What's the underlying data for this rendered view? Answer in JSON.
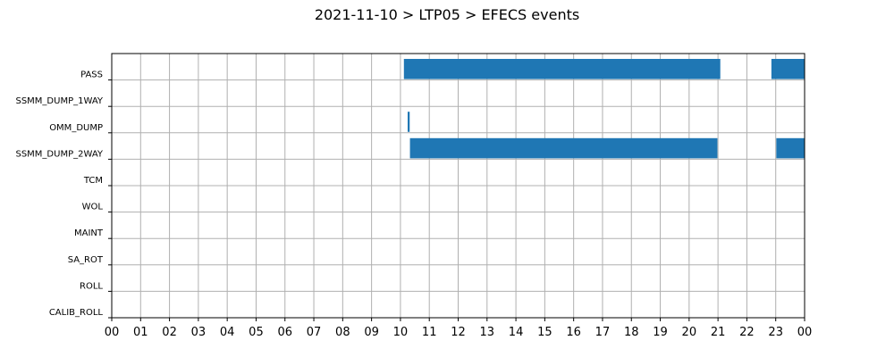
{
  "chart_data": {
    "type": "bar",
    "orientation": "horizontal-timeline",
    "title": "2021-11-10 > LTP05 > EFECS events",
    "xlabel": "",
    "ylabel": "",
    "x_unit": "hours",
    "xlim": [
      0,
      24
    ],
    "x_tick_labels": [
      "00",
      "01",
      "02",
      "03",
      "04",
      "05",
      "06",
      "07",
      "08",
      "09",
      "10",
      "11",
      "12",
      "13",
      "14",
      "15",
      "16",
      "17",
      "18",
      "19",
      "20",
      "21",
      "22",
      "23",
      "00"
    ],
    "categories": [
      "PASS",
      "SSMM_DUMP_1WAY",
      "OMM_DUMP",
      "SSMM_DUMP_2WAY",
      "TCM",
      "WOL",
      "MAINT",
      "SA_ROT",
      "ROLL",
      "CALIB_ROLL"
    ],
    "grid": true,
    "legend": "none",
    "bar_color": "#1f77b4",
    "events": [
      {
        "category": "PASS",
        "start": 10.12,
        "end": 21.08
      },
      {
        "category": "PASS",
        "start": 22.85,
        "end": 24.0
      },
      {
        "category": "OMM_DUMP",
        "start": 10.25,
        "end": 10.32
      },
      {
        "category": "SSMM_DUMP_2WAY",
        "start": 10.33,
        "end": 20.98
      },
      {
        "category": "SSMM_DUMP_2WAY",
        "start": 23.02,
        "end": 24.0
      }
    ]
  }
}
